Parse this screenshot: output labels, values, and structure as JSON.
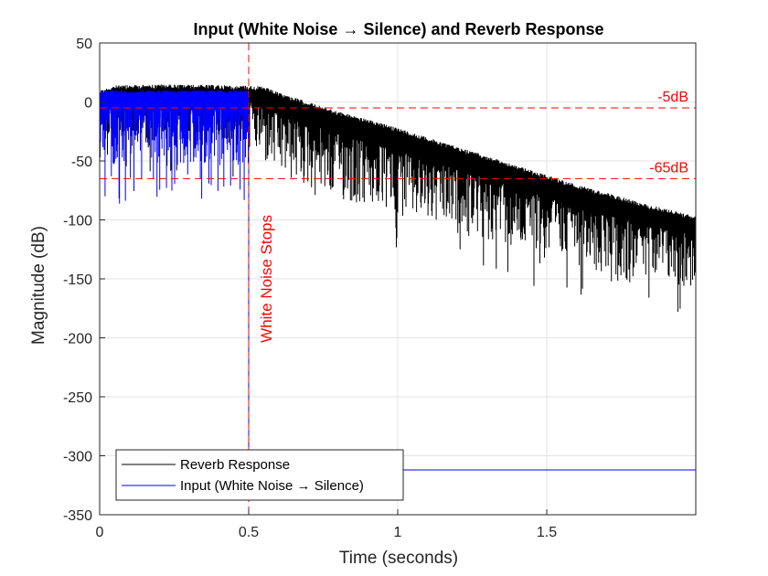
{
  "chart_data": {
    "type": "line",
    "title": "Input (White Noise → Silence) and Reverb Response",
    "xlabel": "Time (seconds)",
    "ylabel": "Magnitude (dB)",
    "xlim": [
      0,
      2
    ],
    "ylim": [
      -350,
      50
    ],
    "xticks": [
      0,
      0.5,
      1,
      1.5
    ],
    "xtick_labels": [
      "0",
      "0.5",
      "1",
      "1.5"
    ],
    "yticks": [
      50,
      0,
      -50,
      -100,
      -150,
      -200,
      -250,
      -300,
      -350
    ],
    "ytick_labels": [
      "50",
      "0",
      "-50",
      "-100",
      "-150",
      "-200",
      "-250",
      "-300",
      "-350"
    ],
    "grid": true,
    "legend_location": "bottom-left",
    "series": [
      {
        "name": "Reverb Response",
        "color": "#000000",
        "envelope": {
          "x": [
            0,
            0.05,
            0.2,
            0.5,
            0.55,
            0.6,
            0.7,
            0.8,
            1.0,
            1.2,
            1.4,
            1.6,
            1.8,
            2.0
          ],
          "upper": [
            10,
            14,
            15,
            14,
            13,
            8,
            0,
            -8,
            -22,
            -38,
            -54,
            -70,
            -84,
            -97
          ],
          "lower": [
            -30,
            -40,
            -40,
            -40,
            -55,
            -65,
            -75,
            -85,
            -100,
            -115,
            -130,
            -145,
            -155,
            -160
          ]
        },
        "tail_level": -312,
        "tail_start": 1.0
      },
      {
        "name": "Input (White Noise → Silence)",
        "color": "#0000ff",
        "envelope": {
          "x": [
            0,
            0.5
          ],
          "upper": [
            10,
            10
          ],
          "lower": [
            -60,
            -60
          ]
        },
        "drop_to": -312,
        "min_spike": -88
      }
    ],
    "reference_lines": [
      {
        "label": "-5dB",
        "y": -5,
        "color": "#ff0000"
      },
      {
        "label": "-65dB",
        "y": -65,
        "color": "#ff0000"
      }
    ],
    "vertical_line": {
      "label": "White Noise Stops",
      "x": 0.5,
      "color": "#ff0000"
    }
  }
}
